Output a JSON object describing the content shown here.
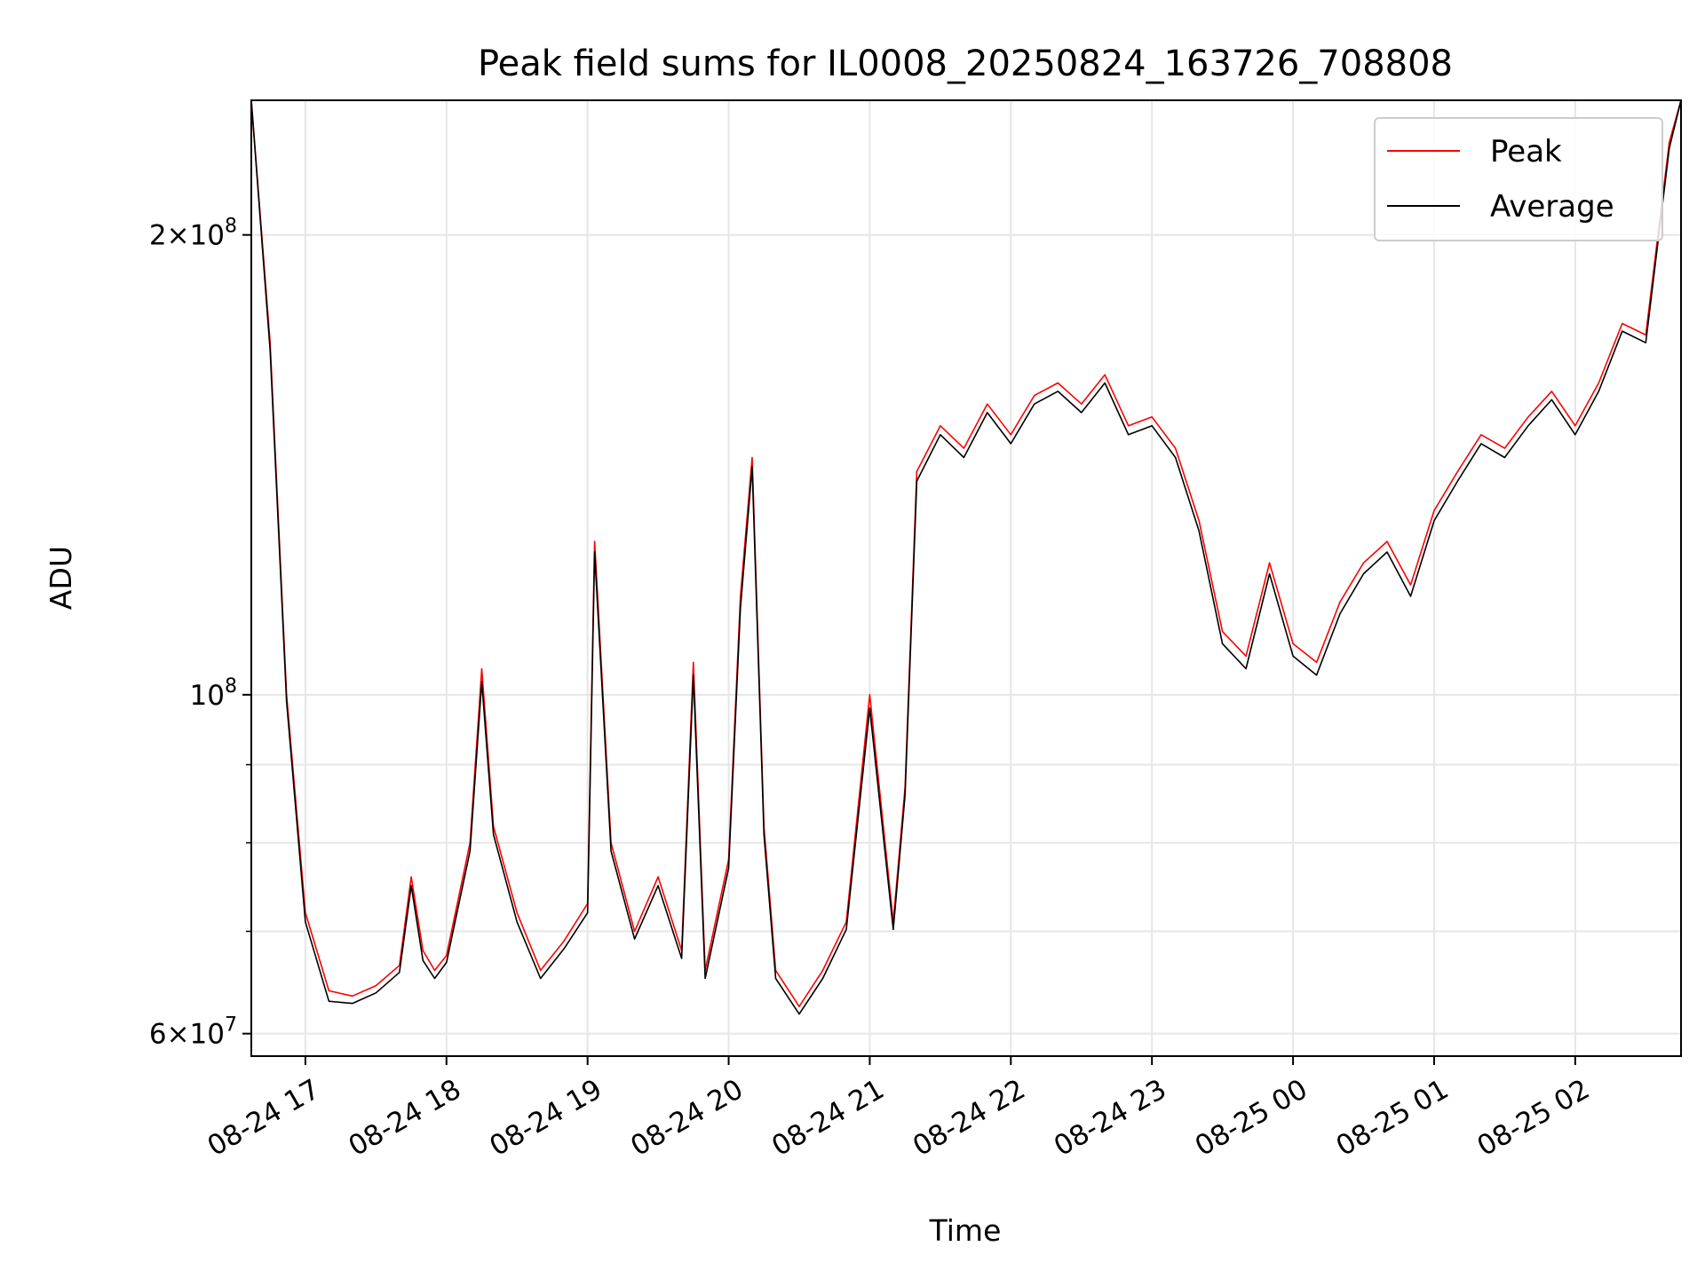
{
  "chart_data": {
    "type": "line",
    "title": "Peak field sums for IL0008_20250824_163726_708808",
    "xlabel": "Time",
    "ylabel": "ADU",
    "yscale": "log",
    "grid": true,
    "legend_position": "top-right",
    "xlim": [
      "2025-08-24 16:37",
      "2025-08-25 02:45"
    ],
    "ylim": [
      58000000,
      245000000
    ],
    "x_ticks": [
      "08-24 17",
      "08-24 18",
      "08-24 19",
      "08-24 20",
      "08-24 21",
      "08-24 22",
      "08-24 23",
      "08-25 00",
      "08-25 01",
      "08-25 02"
    ],
    "x_tick_values": [
      "2025-08-24 17:00",
      "2025-08-24 18:00",
      "2025-08-24 19:00",
      "2025-08-24 20:00",
      "2025-08-24 21:00",
      "2025-08-24 22:00",
      "2025-08-24 23:00",
      "2025-08-25 00:00",
      "2025-08-25 01:00",
      "2025-08-25 02:00"
    ],
    "y_ticks": [
      {
        "value": 60000000,
        "mantissa": "6",
        "exponent": "7"
      },
      {
        "value": 100000000,
        "mantissa": "",
        "exponent": "8"
      },
      {
        "value": 200000000,
        "mantissa": "2",
        "exponent": "8"
      }
    ],
    "y_minor_ticks": [
      70000000,
      80000000,
      90000000
    ],
    "series": [
      {
        "name": "Peak",
        "color": "#ff0000",
        "x": [
          "2025-08-24 16:37",
          "2025-08-24 16:45",
          "2025-08-24 16:52",
          "2025-08-24 17:00",
          "2025-08-24 17:10",
          "2025-08-24 17:20",
          "2025-08-24 17:30",
          "2025-08-24 17:40",
          "2025-08-24 17:45",
          "2025-08-24 17:50",
          "2025-08-24 17:55",
          "2025-08-24 18:00",
          "2025-08-24 18:10",
          "2025-08-24 18:15",
          "2025-08-24 18:20",
          "2025-08-24 18:30",
          "2025-08-24 18:40",
          "2025-08-24 18:50",
          "2025-08-24 19:00",
          "2025-08-24 19:03",
          "2025-08-24 19:10",
          "2025-08-24 19:20",
          "2025-08-24 19:30",
          "2025-08-24 19:40",
          "2025-08-24 19:45",
          "2025-08-24 19:50",
          "2025-08-24 20:00",
          "2025-08-24 20:05",
          "2025-08-24 20:10",
          "2025-08-24 20:15",
          "2025-08-24 20:20",
          "2025-08-24 20:30",
          "2025-08-24 20:40",
          "2025-08-24 20:50",
          "2025-08-24 21:00",
          "2025-08-24 21:10",
          "2025-08-24 21:15",
          "2025-08-24 21:20",
          "2025-08-24 21:30",
          "2025-08-24 21:40",
          "2025-08-24 21:50",
          "2025-08-24 22:00",
          "2025-08-24 22:10",
          "2025-08-24 22:20",
          "2025-08-24 22:30",
          "2025-08-24 22:40",
          "2025-08-24 22:50",
          "2025-08-24 23:00",
          "2025-08-24 23:10",
          "2025-08-24 23:20",
          "2025-08-24 23:30",
          "2025-08-24 23:40",
          "2025-08-24 23:50",
          "2025-08-25 00:00",
          "2025-08-25 00:10",
          "2025-08-25 00:20",
          "2025-08-25 00:30",
          "2025-08-25 00:40",
          "2025-08-25 00:50",
          "2025-08-25 01:00",
          "2025-08-25 01:10",
          "2025-08-25 01:20",
          "2025-08-25 01:30",
          "2025-08-25 01:40",
          "2025-08-25 01:50",
          "2025-08-25 02:00",
          "2025-08-25 02:10",
          "2025-08-25 02:20",
          "2025-08-25 02:30",
          "2025-08-25 02:40",
          "2025-08-25 02:45"
        ],
        "values": [
          245000000,
          170000000,
          100000000,
          72000000,
          64000000,
          63500000,
          64500000,
          66500000,
          76000000,
          68000000,
          66000000,
          67500000,
          80000000,
          104000000,
          82000000,
          72000000,
          66000000,
          69000000,
          73000000,
          126000000,
          80000000,
          70000000,
          76000000,
          68000000,
          105000000,
          66000000,
          78000000,
          116000000,
          143000000,
          82000000,
          66000000,
          62500000,
          66000000,
          71000000,
          100000000,
          71000000,
          87000000,
          140000000,
          150000000,
          145000000,
          155000000,
          148000000,
          157000000,
          160000000,
          155000000,
          162000000,
          150000000,
          152000000,
          145000000,
          130000000,
          110000000,
          106000000,
          122000000,
          108000000,
          105000000,
          115000000,
          122000000,
          126000000,
          118000000,
          132000000,
          140000000,
          148000000,
          145000000,
          152000000,
          158000000,
          150000000,
          160000000,
          175000000,
          172000000,
          230000000,
          245000000
        ]
      },
      {
        "name": "Average",
        "color": "#000000",
        "x": [
          "2025-08-24 16:37",
          "2025-08-24 16:45",
          "2025-08-24 16:52",
          "2025-08-24 17:00",
          "2025-08-24 17:10",
          "2025-08-24 17:20",
          "2025-08-24 17:30",
          "2025-08-24 17:40",
          "2025-08-24 17:45",
          "2025-08-24 17:50",
          "2025-08-24 17:55",
          "2025-08-24 18:00",
          "2025-08-24 18:10",
          "2025-08-24 18:15",
          "2025-08-24 18:20",
          "2025-08-24 18:30",
          "2025-08-24 18:40",
          "2025-08-24 18:50",
          "2025-08-24 19:00",
          "2025-08-24 19:03",
          "2025-08-24 19:10",
          "2025-08-24 19:20",
          "2025-08-24 19:30",
          "2025-08-24 19:40",
          "2025-08-24 19:45",
          "2025-08-24 19:50",
          "2025-08-24 20:00",
          "2025-08-24 20:05",
          "2025-08-24 20:10",
          "2025-08-24 20:15",
          "2025-08-24 20:20",
          "2025-08-24 20:30",
          "2025-08-24 20:40",
          "2025-08-24 20:50",
          "2025-08-24 21:00",
          "2025-08-24 21:10",
          "2025-08-24 21:15",
          "2025-08-24 21:20",
          "2025-08-24 21:30",
          "2025-08-24 21:40",
          "2025-08-24 21:50",
          "2025-08-24 22:00",
          "2025-08-24 22:10",
          "2025-08-24 22:20",
          "2025-08-24 22:30",
          "2025-08-24 22:40",
          "2025-08-24 22:50",
          "2025-08-24 23:00",
          "2025-08-24 23:10",
          "2025-08-24 23:20",
          "2025-08-24 23:30",
          "2025-08-24 23:40",
          "2025-08-24 23:50",
          "2025-08-25 00:00",
          "2025-08-25 00:10",
          "2025-08-25 00:20",
          "2025-08-25 00:30",
          "2025-08-25 00:40",
          "2025-08-25 00:50",
          "2025-08-25 01:00",
          "2025-08-25 01:10",
          "2025-08-25 01:20",
          "2025-08-25 01:30",
          "2025-08-25 01:40",
          "2025-08-25 01:50",
          "2025-08-25 02:00",
          "2025-08-25 02:10",
          "2025-08-25 02:20",
          "2025-08-25 02:30",
          "2025-08-25 02:40",
          "2025-08-25 02:45"
        ],
        "values": [
          245000000,
          168000000,
          99000000,
          71000000,
          63000000,
          62800000,
          63800000,
          65800000,
          75000000,
          67000000,
          65200000,
          66800000,
          79000000,
          102000000,
          81000000,
          71000000,
          65200000,
          68200000,
          72000000,
          124000000,
          79000000,
          69200000,
          75000000,
          67200000,
          103000000,
          65200000,
          77000000,
          114000000,
          141000000,
          81000000,
          65200000,
          61800000,
          65200000,
          70200000,
          98000000,
          70200000,
          86000000,
          138000000,
          148000000,
          143000000,
          153000000,
          146000000,
          155000000,
          158000000,
          153000000,
          160000000,
          148000000,
          150000000,
          143000000,
          128000000,
          108000000,
          104000000,
          120000000,
          106000000,
          103000000,
          113000000,
          120000000,
          124000000,
          116000000,
          130000000,
          138000000,
          146000000,
          143000000,
          150000000,
          156000000,
          148000000,
          158000000,
          173000000,
          170000000,
          228000000,
          245000000
        ]
      }
    ]
  }
}
